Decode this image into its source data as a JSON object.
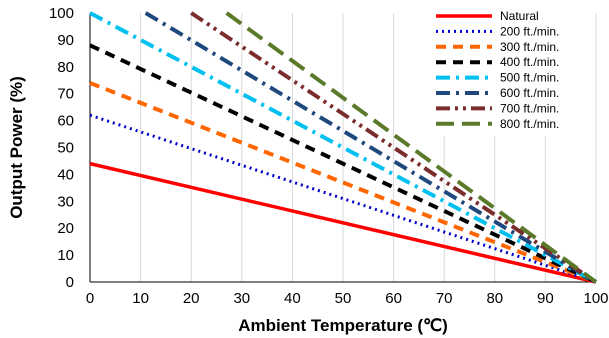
{
  "chart_data": {
    "type": "line",
    "title": "",
    "xlabel": "Ambient Temperature (℃)",
    "ylabel": "Output Power (%)",
    "xlim": [
      0,
      100
    ],
    "ylim": [
      0,
      100
    ],
    "x_ticks": [
      0,
      10,
      20,
      30,
      40,
      50,
      60,
      70,
      80,
      90,
      100
    ],
    "y_ticks": [
      0,
      10,
      20,
      30,
      40,
      50,
      60,
      70,
      80,
      90,
      100
    ],
    "grid": "vertical",
    "legend_position": "top-right",
    "series": [
      {
        "name": "Natural",
        "color": "#ff0000",
        "style": "solid",
        "x": [
          0,
          100
        ],
        "y": [
          44,
          0
        ]
      },
      {
        "name": "200 ft./min.",
        "color": "#0000cc",
        "style": "dotted",
        "x": [
          0,
          100
        ],
        "y": [
          62,
          0
        ]
      },
      {
        "name": "300 ft./min.",
        "color": "#ff6600",
        "style": "dashed",
        "x": [
          0,
          100
        ],
        "y": [
          74,
          0
        ]
      },
      {
        "name": "400 ft./min.",
        "color": "#000000",
        "style": "dashed",
        "x": [
          0,
          100
        ],
        "y": [
          88,
          0
        ]
      },
      {
        "name": "500 ft./min.",
        "color": "#00c0f0",
        "style": "dash-dot",
        "x": [
          0,
          100
        ],
        "y": [
          100,
          0
        ]
      },
      {
        "name": "600 ft./min.",
        "color": "#1f497d",
        "style": "dash-dot",
        "x": [
          11,
          100
        ],
        "y": [
          100,
          0
        ]
      },
      {
        "name": "700 ft./min.",
        "color": "#7b2c2c",
        "style": "dash-dot-dot",
        "x": [
          20,
          100
        ],
        "y": [
          100,
          0
        ]
      },
      {
        "name": "800 ft./min.",
        "color": "#5a7a2a",
        "style": "long-dash",
        "x": [
          27,
          100
        ],
        "y": [
          100,
          0
        ]
      }
    ]
  }
}
